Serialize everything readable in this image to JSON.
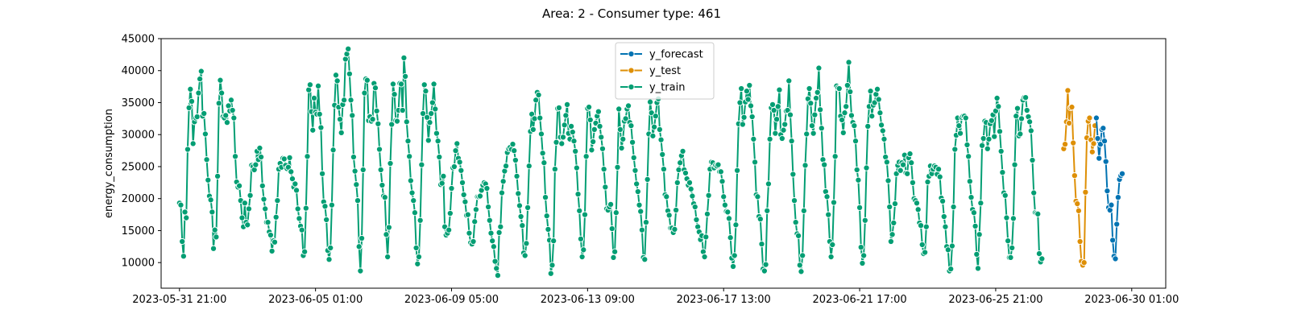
{
  "chart_data": {
    "type": "line",
    "title": "Area: 2 - Consumer type: 461",
    "xlabel": "",
    "ylabel": "energy_consumption",
    "ylim": [
      6000,
      45000
    ],
    "xlim_hours": [
      -13.5,
      725
    ],
    "y_ticks": [
      10000,
      15000,
      20000,
      25000,
      30000,
      35000,
      40000,
      45000
    ],
    "x_tick_labels": [
      "2023-05-31 21:00",
      "2023-06-05 01:00",
      "2023-06-09 05:00",
      "2023-06-13 09:00",
      "2023-06-17 13:00",
      "2023-06-21 17:00",
      "2023-06-25 21:00",
      "2023-06-30 01:00"
    ],
    "x_tick_step_hours": 100,
    "x_start": "2023-05-31 21:00",
    "x_step_hours": 1,
    "grid": false,
    "legend_position": "top-center",
    "series": [
      {
        "name": "y_forecast",
        "color": "#0173b2",
        "x_start": 674,
        "values": [
          32600,
          29400,
          26300,
          28500,
          30800,
          31000,
          29000,
          25800,
          21200,
          18600,
          18200,
          19000,
          13500,
          11000,
          10600,
          16000,
          20200,
          23000,
          23600,
          23900
        ]
      },
      {
        "name": "y_test",
        "color": "#de8f05",
        "x_start": 650,
        "values": [
          27800,
          28500,
          32000,
          36900,
          31800,
          34200,
          34300,
          28700,
          23600,
          19600,
          19200,
          18100,
          13300,
          10200,
          9600,
          10000,
          21000,
          29500,
          32100,
          32600,
          29200,
          27300,
          28600,
          31400
        ]
      },
      {
        "name": "y_train",
        "color": "#029e73",
        "x_start": 0,
        "values": [
          19300,
          19000,
          13300,
          11000,
          17900,
          17000,
          27700,
          34200,
          37100,
          35200,
          28600,
          32000,
          32600,
          32800,
          36500,
          38700,
          39900,
          32900,
          33300,
          30100,
          26100,
          22900,
          20400,
          19800,
          17900,
          12200,
          15100,
          14000,
          23500,
          34900,
          38500,
          36500,
          32800,
          32600,
          33000,
          31900,
          34500,
          33700,
          35400,
          33800,
          32600,
          26600,
          22600,
          21800,
          22000,
          19700,
          17000,
          15600,
          19300,
          16300,
          15900,
          18400,
          20500,
          25200,
          25000,
          24500,
          25300,
          27400,
          26100,
          27900,
          26500,
          22000,
          19900,
          18400,
          16300,
          16300,
          14800,
          14300,
          11800,
          13400,
          13200,
          17100,
          19700,
          24600,
          25500,
          24900,
          26300,
          26200,
          25200,
          24700,
          24900,
          26400,
          24200,
          23100,
          21800,
          22300,
          21300,
          18400,
          16900,
          15700,
          15100,
          11100,
          11700,
          18500,
          26600,
          37000,
          37800,
          33600,
          30700,
          35700,
          33500,
          33200,
          37600,
          33200,
          31100,
          23900,
          19500,
          18800,
          16700,
          11900,
          10500,
          12300,
          19000,
          27600,
          34600,
          39300,
          38400,
          34300,
          32400,
          30300,
          34700,
          35400,
          41800,
          42600,
          43400,
          39500,
          35400,
          33000,
          26500,
          24300,
          22200,
          19700,
          12500,
          8700,
          13800,
          24500,
          36500,
          38700,
          38500,
          32200,
          32800,
          32100,
          32400,
          38000,
          37300,
          33700,
          31700,
          27700,
          24500,
          22100,
          20400,
          20200,
          14400,
          10900,
          15500,
          25500,
          31600,
          37900,
          36300,
          32200,
          32100,
          33800,
          38000,
          37900,
          33800,
          42000,
          39100,
          32000,
          29000,
          26600,
          22800,
          20900,
          19700,
          17800,
          12300,
          9800,
          10900,
          16600,
          25300,
          33300,
          37800,
          36800,
          32700,
          29100,
          31900,
          33300,
          35000,
          37900,
          34000,
          30200,
          29000,
          26500,
          22200,
          22400,
          23500,
          15600,
          14300,
          14600,
          15100,
          17700,
          21600,
          24800,
          25000,
          27500,
          28600,
          26300,
          25700,
          24400,
          22500,
          20600,
          19500,
          17400,
          17500,
          14600,
          13100,
          12900,
          13300,
          16400,
          18300,
          20300,
          20300,
          20400,
          21300,
          22100,
          22500,
          22300,
          21600,
          18700,
          16600,
          14600,
          13400,
          12500,
          10200,
          9100,
          8000,
          14700,
          15600,
          20900,
          22700,
          24300,
          25100,
          27200,
          27800,
          28000,
          27700,
          28500,
          27500,
          26000,
          23500,
          20800,
          18900,
          17200,
          15800,
          11500,
          11100,
          13000,
          18600,
          25100,
          30500,
          33200,
          30800,
          32500,
          35400,
          36600,
          36200,
          32600,
          30100,
          27100,
          25600,
          20200,
          17300,
          15200,
          13500,
          8300,
          9600,
          13400,
          24600,
          28800,
          34100,
          34200,
          29600,
          28600,
          29600,
          31500,
          33000,
          34700,
          30200,
          29300,
          31300,
          30400,
          29000,
          27400,
          24800,
          20700,
          18100,
          13700,
          10900,
          12000,
          17500,
          26600,
          34100,
          34300,
          32300,
          27600,
          28900,
          30800,
          31800,
          32900,
          33600,
          31300,
          29600,
          27800,
          24600,
          21800,
          18400,
          18200,
          18700,
          19100,
          15300,
          10800,
          11700,
          17800,
          24900,
          34000,
          30800,
          27900,
          29300,
          32100,
          32500,
          34000,
          34500,
          31900,
          31400,
          28800,
          26400,
          24400,
          22300,
          21100,
          19000,
          18000,
          15100,
          10800,
          10500,
          16300,
          23000,
          30100,
          35100,
          33400,
          29800,
          31200,
          32900,
          35000,
          35600,
          30800,
          29200,
          26900,
          24600,
          20600,
          20300,
          18100,
          17400,
          15400,
          15400,
          14700,
          15200,
          18200,
          22500,
          24500,
          25600,
          26700,
          27400,
          24500,
          24000,
          23100,
          22100,
          22500,
          21500,
          20400,
          19200,
          18700,
          16700,
          15600,
          14800,
          13600,
          14200,
          11700,
          10900,
          14000,
          17600,
          20500,
          24600,
          25700,
          25600,
          24800,
          25200,
          25100,
          25300,
          24200,
          24200,
          22700,
          20300,
          19000,
          18000,
          17900,
          16900,
          13900,
          10700,
          9400,
          11100,
          15900,
          24400,
          31700,
          35000,
          37200,
          31600,
          32700,
          35100,
          36800,
          35500,
          37700,
          34500,
          32800,
          29300,
          25700,
          20600,
          20300,
          17200,
          16800,
          12900,
          9000,
          8700,
          9700,
          18100,
          22300,
          29300,
          34200,
          34700,
          33800,
          30200,
          32400,
          34400,
          37000,
          30000,
          29400,
          30700,
          31600,
          33700,
          33800,
          38400,
          33100,
          29000,
          23800,
          19700,
          16300,
          14500,
          14200,
          9600,
          8600,
          11100,
          18100,
          25200,
          30100,
          35600,
          37200,
          34900,
          31400,
          30200,
          33100,
          35700,
          36600,
          40400,
          33900,
          31000,
          26100,
          25300,
          21100,
          20300,
          17500,
          13300,
          10900,
          12800,
          19400,
          26600,
          37600,
          37300,
          37200,
          32900,
          32300,
          30300,
          33400,
          34400,
          37700,
          41300,
          36700,
          33000,
          31900,
          31400,
          29000,
          24500,
          22900,
          18600,
          12400,
          9900,
          11100,
          16600,
          24800,
          31300,
          34400,
          36800,
          32900,
          34600,
          35000,
          36300,
          37100,
          35500,
          33400,
          31500,
          30600,
          29300,
          26500,
          25700,
          22800,
          18700,
          13300,
          14400,
          16200,
          19200,
          23900,
          25200,
          25700,
          24400,
          25600,
          25300,
          26800,
          24000,
          23900,
          26400,
          27000,
          25600,
          22500,
          20000,
          19700,
          19300,
          18300,
          16200,
          15800,
          12800,
          11400,
          11600,
          15600,
          22600,
          23500,
          25100,
          23900,
          24600,
          25100,
          24900,
          23800,
          24600,
          23400,
          20100,
          19600,
          17200,
          15600,
          12500,
          12000,
          8700,
          9000,
          12600,
          18700,
          27700,
          29900,
          32600,
          31400,
          30200,
          32700,
          32900,
          32900,
          32600,
          28400,
          26600,
          22700,
          20200,
          18300,
          17800,
          15700,
          11300,
          9100,
          14400,
          19300,
          28300,
          29400,
          32100,
          31900,
          27800,
          29300,
          31700,
          32200,
          33100,
          29700,
          33700,
          35700,
          34400,
          30500,
          27400,
          24100,
          20900,
          20500,
          17000,
          13400,
          10800,
          10800,
          12300,
          16900,
          25300,
          32900,
          34100,
          29800,
          30100,
          32500,
          35400,
          35800,
          35800,
          33800,
          32800,
          32000,
          30600,
          26000,
          20900,
          17800,
          17700,
          17600,
          11400,
          10100,
          10600
        ]
      }
    ]
  }
}
